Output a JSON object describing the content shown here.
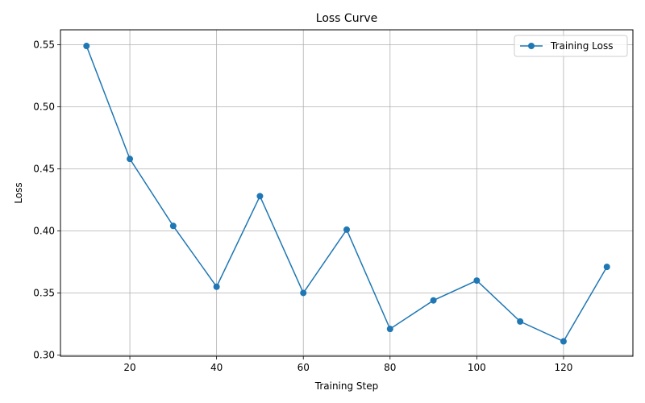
{
  "chart_data": {
    "type": "line",
    "title": "Loss Curve",
    "xlabel": "Training Step",
    "ylabel": "Loss",
    "xlim": [
      4,
      136
    ],
    "ylim": [
      0.299,
      0.562
    ],
    "xticks": [
      20,
      40,
      60,
      80,
      100,
      120
    ],
    "yticks": [
      0.3,
      0.35,
      0.4,
      0.45,
      0.5,
      0.55
    ],
    "grid": true,
    "legend_position": "top-right",
    "series": [
      {
        "name": "Training Loss",
        "color": "#1f77b4",
        "marker": "circle",
        "x": [
          10,
          20,
          30,
          40,
          50,
          60,
          70,
          80,
          90,
          100,
          110,
          120,
          130
        ],
        "y": [
          0.549,
          0.458,
          0.404,
          0.355,
          0.428,
          0.35,
          0.401,
          0.321,
          0.344,
          0.36,
          0.327,
          0.311,
          0.371
        ]
      }
    ]
  }
}
